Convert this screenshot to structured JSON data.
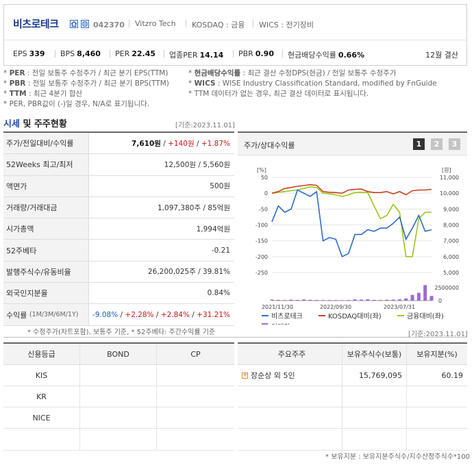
{
  "header": {
    "company_name": "비츠로테크",
    "code": "042370",
    "english_name": "Vitzro Tech",
    "market": "KOSDAQ : 금융",
    "wics": "WICS : 전기장비",
    "stats": [
      {
        "label": "EPS",
        "value": "339"
      },
      {
        "label": "BPS",
        "value": "8,460"
      },
      {
        "label": "PER",
        "value": "22.45"
      },
      {
        "label": "업종PER",
        "value": "14.14"
      },
      {
        "label": "PBR",
        "value": "0.90"
      },
      {
        "label": "현금배당수익률",
        "value": "0.66%"
      }
    ],
    "settlement": "12월 결산"
  },
  "notes_left": [
    {
      "key": "PER",
      "text": ": 전일 보통주 수정주가 / 최근 분기 EPS(TTM)"
    },
    {
      "key": "PBR",
      "text": ": 전일 보통주 수정주가 / 최근 분기 BPS(TTM)"
    },
    {
      "key": "TTM",
      "text": ": 최근 4분기 합산"
    },
    {
      "key": "",
      "text": "PER, PBR값이 (-)일 경우, N/A로 표기됩니다."
    }
  ],
  "notes_right": [
    {
      "key": "현금배당수익률",
      "text": ": 최근 결산 수정DPS(현금) / 전일 보통주 수정주가"
    },
    {
      "key": "WICS",
      "text": ": WISE Industry Classification Standard, modified by FnGuide"
    },
    {
      "key": "",
      "text": "TTM 데이터가 없는 경우, 최근 결산 데이터로 표시됩니다."
    }
  ],
  "section": {
    "title_a": "시세",
    "title_b": " 및 주주현황",
    "basis": "[기준:2023.11.01]"
  },
  "market_table": [
    {
      "label": "주가/전일대비/수익률",
      "v1": "7,610원",
      "v2": "+140원",
      "v3": "+1.87%"
    },
    {
      "label": "52Weeks 최고/최저",
      "value": "12,500원 / 5,560원"
    },
    {
      "label": "액면가",
      "value": "500원"
    },
    {
      "label": "거래량/거래대금",
      "value": "1,097,380주 / 85억원"
    },
    {
      "label": "시가총액",
      "value": "1,994억원"
    },
    {
      "label": "52주베타",
      "value": "-0.21"
    },
    {
      "label": "발행주식수/유동비율",
      "value": "26,200,025주 / 39.81%"
    },
    {
      "label": "외국인지분율",
      "value": "0.84%"
    },
    {
      "label": "수익률",
      "sublabel": "(1M/3M/6M/1Y)",
      "r1": "-9.08%",
      "r2": "+2.28%",
      "r3": "+2.84%",
      "r4": "+31.21%"
    }
  ],
  "market_note": "* 수정주가(차트포함), 보통주 기준, * 52주베타: 주간수익률 기준",
  "chart": {
    "title": "주가/상대수익률",
    "pages": [
      "1",
      "2",
      "3"
    ],
    "legend": [
      "비츠로테크",
      "KOSDAQ대비(좌)",
      "금융대비(좌)",
      "거래량"
    ],
    "colors": {
      "stock": "#2b6cc4",
      "kosdaq": "#c8421c",
      "sector": "#9dc41c",
      "volume": "#9b6bd6"
    }
  },
  "chart_data": {
    "type": "line",
    "left_axis": {
      "unit": "[%]",
      "ticks": [
        "50",
        "0",
        "-50",
        "-100",
        "-150",
        "-200",
        "-250"
      ],
      "range": [
        -250,
        50
      ]
    },
    "right_axis": {
      "unit": "[원]",
      "ticks": [
        "11,000",
        "10,000",
        "9,000",
        "8,000",
        "7,000",
        "6,000",
        "5,000"
      ],
      "range": [
        5000,
        11000
      ]
    },
    "volume_axis": {
      "ticks": [
        "2500000",
        "0"
      ],
      "range": [
        0,
        4500000
      ]
    },
    "x_labels": [
      "2021/11/30",
      "2022/09/30",
      "2023/07/31"
    ],
    "series": [
      {
        "name": "비츠로테크",
        "axis": "right",
        "values": [
          8200,
          9200,
          8800,
          9000,
          10200,
          10000,
          9800,
          10100,
          7000,
          7200,
          7100,
          6000,
          6200,
          7400,
          7400,
          7700,
          7600,
          7800,
          7800,
          8100,
          8500,
          7100,
          7800,
          8600,
          7600,
          7700
        ]
      },
      {
        "name": "KOSDAQ대비(좌)",
        "axis": "left",
        "values": [
          0,
          5,
          15,
          18,
          22,
          24,
          27,
          25,
          5,
          3,
          2,
          0,
          10,
          12,
          13,
          5,
          2,
          2,
          5,
          -2,
          5,
          -5,
          8,
          10,
          10,
          12
        ]
      },
      {
        "name": "금융대비(좌)",
        "axis": "left",
        "values": [
          0,
          3,
          5,
          8,
          10,
          15,
          20,
          18,
          0,
          -2,
          -5,
          -10,
          -5,
          2,
          3,
          2,
          -40,
          -80,
          -70,
          -35,
          -60,
          -200,
          -200,
          -80,
          -60,
          -60
        ]
      },
      {
        "name": "거래량",
        "axis": "volume",
        "type": "bar",
        "values": [
          200000,
          150000,
          100000,
          180000,
          140000,
          220000,
          160000,
          130000,
          110000,
          120000,
          100000,
          90000,
          120000,
          250000,
          200000,
          260000,
          150000,
          120000,
          170000,
          200000,
          250000,
          420000,
          1100000,
          1500000,
          3000000,
          900000
        ]
      }
    ]
  },
  "credit": {
    "headers": [
      "신용등급",
      "BOND",
      "CP"
    ],
    "rows": [
      {
        "agency": "KIS",
        "bond": "",
        "cp": ""
      },
      {
        "agency": "KR",
        "bond": "",
        "cp": ""
      },
      {
        "agency": "NICE",
        "bond": "",
        "cp": ""
      }
    ]
  },
  "holders": {
    "basis": "[기준:2023.11.01]",
    "headers": [
      "주요주주",
      "보유주식수(보통)",
      "보유지분(%)"
    ],
    "rows": [
      {
        "name": "장순상 외 5인",
        "shares": "15,769,095",
        "pct": "60.19"
      }
    ],
    "note": "* 보유지분 : 보유지분주식수/지수산정주식수*100"
  }
}
